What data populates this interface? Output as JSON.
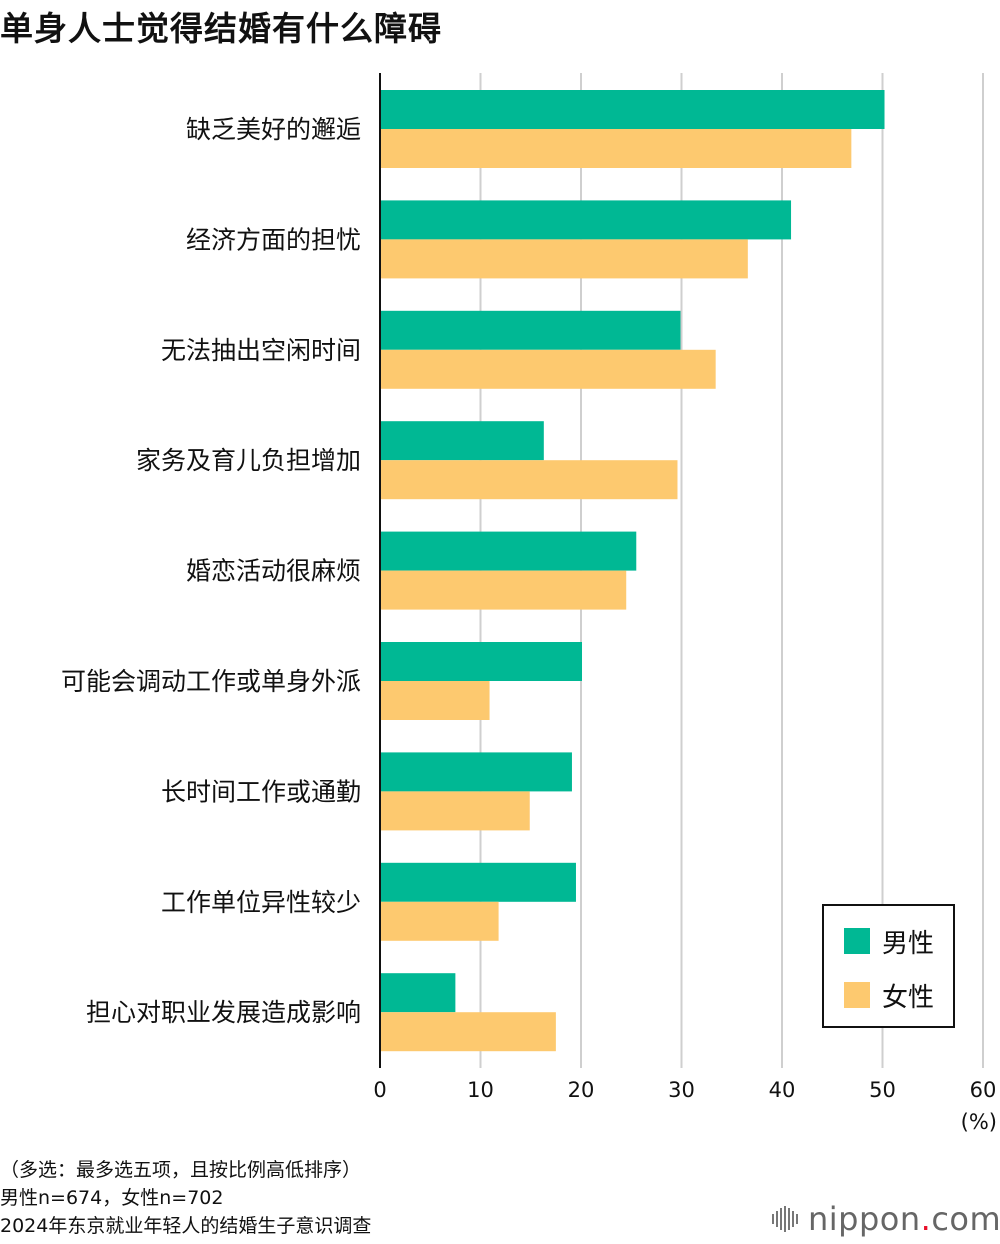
{
  "title": "单身人士觉得结婚有什么障碍",
  "chart_data": {
    "type": "bar",
    "orientation": "horizontal",
    "categories": [
      "缺乏美好的邂逅",
      "经济方面的担忧",
      "无法抽出空闲时间",
      "家务及育儿负担增加",
      "婚恋活动很麻烦",
      "可能会调动工作或单身外派",
      "长时间工作或通勤",
      "工作单位异性较少",
      "担心对职业发展造成影响"
    ],
    "series": [
      {
        "name": "男性",
        "color": "#00b894",
        "values": [
          50.2,
          40.9,
          29.9,
          16.3,
          25.5,
          20.1,
          19.1,
          19.5,
          7.5
        ]
      },
      {
        "name": "女性",
        "color": "#fdc96f",
        "values": [
          46.9,
          36.6,
          33.4,
          29.6,
          24.5,
          10.9,
          14.9,
          11.8,
          17.5
        ]
      }
    ],
    "xlim": [
      0,
      60
    ],
    "ticks": [
      0,
      10,
      20,
      30,
      40,
      50,
      60
    ],
    "tick_labels": [
      "0",
      "10",
      "20",
      "30",
      "40",
      "50",
      "60"
    ],
    "unit": "(%)",
    "grid": true,
    "legend": "bottom-right"
  },
  "notes": [
    "（多选：最多选五项，且按比例高低排序）",
    "男性n=674，女性n=702",
    "2024年东京就业年轻人的结婚生子意识调查"
  ],
  "logo": {
    "name": "nippon",
    "dot": ".",
    "suffix": "com"
  }
}
